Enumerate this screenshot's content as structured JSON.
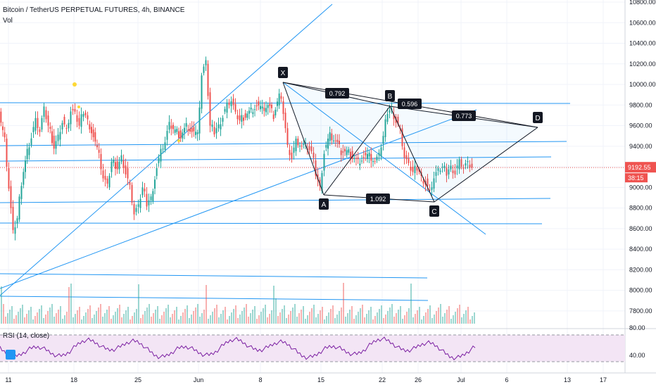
{
  "header": {
    "title": "Bitcoin / TetherUS PERPETUAL FUTURES, 4h, BINANCE",
    "volume_label": "Vol"
  },
  "rsi": {
    "label": "RSI (14, close)",
    "levels": [
      80,
      40
    ],
    "level_labels": [
      "80.00",
      "40.00"
    ],
    "line_color": "#7b1fa2",
    "band_color": "#f3e5f5"
  },
  "price_axis": {
    "ticks": [
      10800,
      10600,
      10400,
      10200,
      10000,
      9800,
      9600,
      9400,
      9200,
      9000,
      8800,
      8600,
      8400,
      8200,
      8000,
      7800
    ],
    "tick_labels": [
      "10800.00",
      "10600.00",
      "10400.00",
      "10200.00",
      "10000.00",
      "9800.00",
      "9600.00",
      "9400.00",
      "9200.00",
      "9000.00",
      "8800.00",
      "8600.00",
      "8400.00",
      "8200.00",
      "8000.00",
      "7800.00"
    ],
    "current_price": "9192.55",
    "countdown": "38:15",
    "up_color": "#26a69a",
    "down_color": "#ef5350"
  },
  "time_axis": {
    "labels": [
      "11",
      "18",
      "25",
      "Jun",
      "8",
      "15",
      "22",
      "26",
      "Jul",
      "6",
      "13",
      "17"
    ]
  },
  "pattern": {
    "points": [
      "X",
      "A",
      "B",
      "C",
      "D"
    ],
    "ratios": [
      "0.792",
      "0.596",
      "0.773",
      "1.092"
    ],
    "color": "#2196f3"
  }
}
